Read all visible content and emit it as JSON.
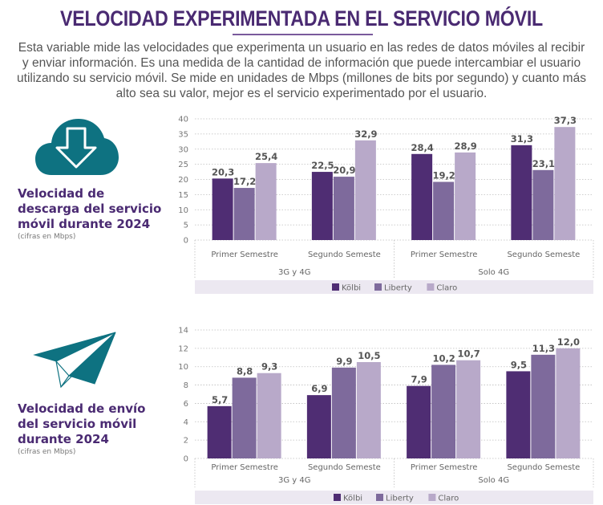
{
  "header": {
    "title": "VELOCIDAD EXPERIMENTADA EN EL SERVICIO MÓVIL",
    "intro": "Esta variable mide las velocidades que experimenta un usuario en las redes de datos móviles al recibir y enviar información. Es una medida de la cantidad de información que puede intercambiar el usuario utilizando su servicio móvil. Se mide en unidades de Mbps (millones de bits por segundo) y cuanto más alto sea su valor, mejor es el servicio experimentado por el usuario."
  },
  "sections": [
    {
      "icon": "cloud-download-icon",
      "title_lines": [
        "Velocidad de",
        "descarga del servicio",
        "móvil durante 2024"
      ],
      "subtitle": "(cifras en Mbps)"
    },
    {
      "icon": "paper-plane-icon",
      "title_lines": [
        "Velocidad de envío",
        "del servicio móvil",
        "durante 2024"
      ],
      "subtitle": "(cifras en Mbps)"
    }
  ],
  "colors": {
    "Kölbi": "#4f2d73",
    "Liberty": "#7e6a9c",
    "Claro": "#b8a9c9",
    "icon": "#0e7281",
    "legend_bg": "#ece8f1"
  },
  "chart_data": [
    {
      "type": "bar",
      "title": "Velocidad de descarga del servicio móvil durante 2024",
      "ylabel": "Mbps",
      "ylim": [
        0,
        40
      ],
      "yticks": [
        0,
        5,
        10,
        15,
        20,
        25,
        30,
        35,
        40
      ],
      "grid": true,
      "legend": "bottom",
      "groups": [
        {
          "name": "3G y 4G",
          "categories": [
            "Primer Semestre",
            "Segundo Semeste"
          ]
        },
        {
          "name": "Solo 4G",
          "categories": [
            "Primer Semestre",
            "Segundo Semeste"
          ]
        }
      ],
      "categories": [
        "Primer Semestre",
        "Segundo Semeste",
        "Primer Semestre",
        "Segundo Semeste"
      ],
      "series": [
        {
          "name": "Kölbi",
          "values": [
            20.3,
            22.5,
            28.4,
            31.3
          ],
          "labels": [
            "20,3",
            "22,5",
            "28,4",
            "31,3"
          ]
        },
        {
          "name": "Liberty",
          "values": [
            17.2,
            20.9,
            19.2,
            23.1
          ],
          "labels": [
            "17,2",
            "20,9",
            "19,2",
            "23,1"
          ]
        },
        {
          "name": "Claro",
          "values": [
            25.4,
            32.9,
            28.9,
            37.3
          ],
          "labels": [
            "25,4",
            "32,9",
            "28,9",
            "37,3"
          ]
        }
      ]
    },
    {
      "type": "bar",
      "title": "Velocidad de envío del servicio móvil durante 2024",
      "ylabel": "Mbps",
      "ylim": [
        0,
        14
      ],
      "yticks": [
        0,
        2,
        4,
        6,
        8,
        10,
        12,
        14
      ],
      "grid": true,
      "legend": "bottom",
      "groups": [
        {
          "name": "3G y 4G",
          "categories": [
            "Primer Semestre",
            "Segundo Semeste"
          ]
        },
        {
          "name": "Solo 4G",
          "categories": [
            "Primer Semestre",
            "Segundo Semeste"
          ]
        }
      ],
      "categories": [
        "Primer Semestre",
        "Segundo Semeste",
        "Primer Semestre",
        "Segundo Semeste"
      ],
      "series": [
        {
          "name": "Kölbi",
          "values": [
            5.7,
            6.9,
            7.9,
            9.5
          ],
          "labels": [
            "5,7",
            "6,9",
            "7,9",
            "9,5"
          ]
        },
        {
          "name": "Liberty",
          "values": [
            8.8,
            9.9,
            10.2,
            11.3
          ],
          "labels": [
            "8,8",
            "9,9",
            "10,2",
            "11,3"
          ]
        },
        {
          "name": "Claro",
          "values": [
            9.3,
            10.5,
            10.7,
            12.0
          ],
          "labels": [
            "9,3",
            "10,5",
            "10,7",
            "12,0"
          ]
        }
      ]
    }
  ]
}
